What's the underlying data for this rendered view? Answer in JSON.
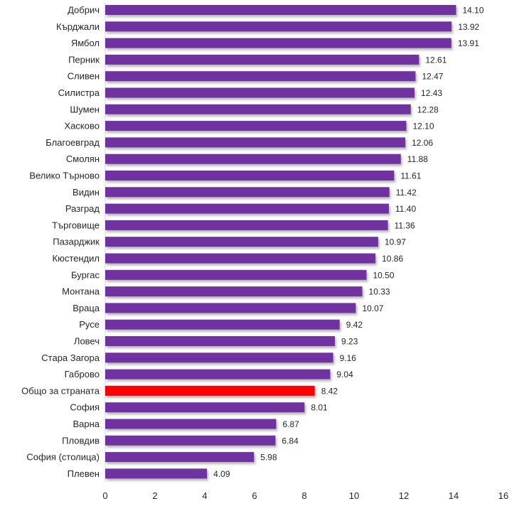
{
  "chart_data": {
    "type": "bar",
    "orientation": "horizontal",
    "title": "",
    "xlabel": "",
    "ylabel": "",
    "xlim": [
      0,
      16
    ],
    "x_ticks": [
      "0",
      "2",
      "4",
      "6",
      "8",
      "10",
      "12",
      "14",
      "16"
    ],
    "grid": false,
    "legend": "none",
    "bar_color": "#7030A0",
    "highlight_color": "#FF0000",
    "categories": [
      "Добрич",
      "Кърджали",
      "Ямбол",
      "Перник",
      "Сливен",
      "Силистра",
      "Шумен",
      "Хасково",
      "Благоевград",
      "Смолян",
      "Велико Търново",
      "Видин",
      "Разград",
      "Търговище",
      "Пазарджик",
      "Кюстендил",
      "Бургас",
      "Монтана",
      "Враца",
      "Русе",
      "Ловеч",
      "Стара Загора",
      "Габрово",
      "Общо за страната",
      "София",
      "Варна",
      "Пловдив",
      "София (столица)",
      "Плевен"
    ],
    "values": [
      14.1,
      13.92,
      13.91,
      12.61,
      12.47,
      12.43,
      12.28,
      12.1,
      12.06,
      11.88,
      11.61,
      11.42,
      11.4,
      11.36,
      10.97,
      10.86,
      10.5,
      10.33,
      10.07,
      9.42,
      9.23,
      9.16,
      9.04,
      8.42,
      8.01,
      6.87,
      6.84,
      5.98,
      4.09
    ],
    "value_labels": [
      "14.10",
      "13.92",
      "13.91",
      "12.61",
      "12.47",
      "12.43",
      "12.28",
      "12.10",
      "12.06",
      "11.88",
      "11.61",
      "11.42",
      "11.40",
      "11.36",
      "10.97",
      "10.86",
      "10.50",
      "10.33",
      "10.07",
      "9.42",
      "9.23",
      "9.16",
      "9.04",
      "8.42",
      "8.01",
      "6.87",
      "6.84",
      "5.98",
      "4.09"
    ],
    "highlighted_category": "Общо за страната"
  }
}
